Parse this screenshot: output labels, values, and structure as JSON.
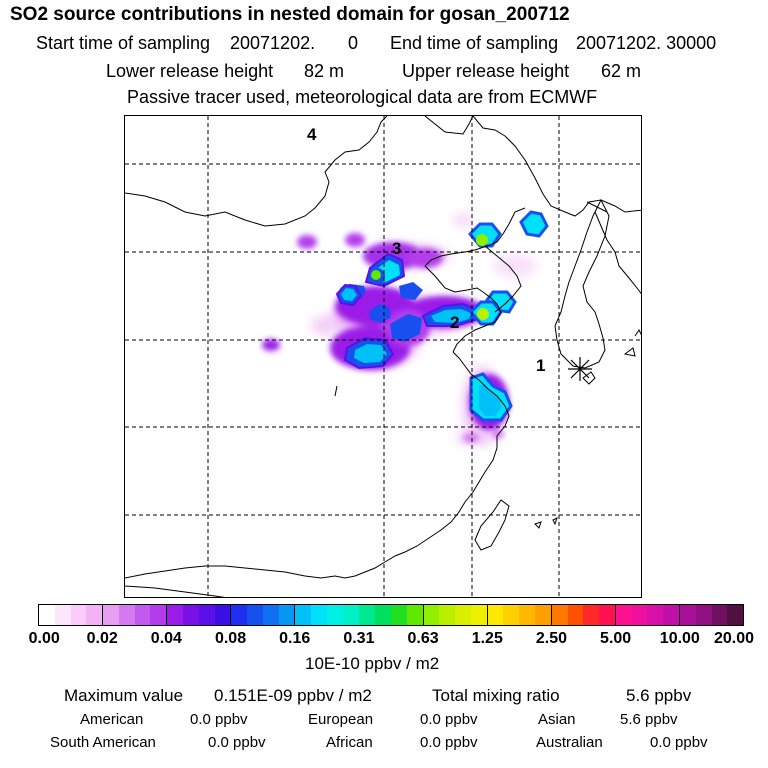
{
  "header": {
    "title": "SO2 source contributions in nested domain for gosan_200712",
    "start_label": "Start time of sampling",
    "start_value": "20071202.",
    "start_hour": "0",
    "end_label": "End time of sampling",
    "end_value": "20071202. 30000",
    "lower_label": "Lower release height",
    "lower_value": "82 m",
    "upper_label": "Upper release height",
    "upper_value": "62 m",
    "note": "Passive tracer used, meteorological data are from ECMWF"
  },
  "map": {
    "labels": [
      "1",
      "2",
      "3",
      "4"
    ],
    "receptor_marker": "station-marker-icon"
  },
  "colorbar": {
    "ticks": [
      "0.00",
      "0.02",
      "0.04",
      "0.08",
      "0.16",
      "0.31",
      "0.63",
      "1.25",
      "2.50",
      "5.00",
      "10.00",
      "20.00"
    ],
    "segments": [
      [
        "#ffffff",
        "#fde6fd",
        "#f9ccf9",
        "#f3b2f5"
      ],
      [
        "#e79ef3",
        "#d57af1",
        "#c35aef",
        "#b43ced"
      ],
      [
        "#9b1ce8",
        "#7a10e6",
        "#5a10e6",
        "#3a10e6"
      ],
      [
        "#2030f0",
        "#1850f0",
        "#1070f2",
        "#0898f4"
      ],
      [
        "#00c0f8",
        "#00e0f8",
        "#00f0e8",
        "#00f0c8"
      ],
      [
        "#00e890",
        "#00e060",
        "#20e020",
        "#60e800"
      ],
      [
        "#90f000",
        "#b8f000",
        "#d8f000",
        "#eef000"
      ],
      [
        "#ffe800",
        "#ffd000",
        "#ffb800",
        "#ffa000"
      ],
      [
        "#ff7800",
        "#ff5000",
        "#ff2828",
        "#ff1050"
      ],
      [
        "#ff1090",
        "#f010a0",
        "#d810a8",
        "#c010a8"
      ],
      [
        "#a81098",
        "#901080",
        "#701060",
        "#501040"
      ]
    ],
    "unit_label": "10E-10 ppbv / m2"
  },
  "summary": {
    "max_label": "Maximum value",
    "max_value": "0.151E-09 ppbv / m2",
    "total_label": "Total mixing ratio",
    "total_value": "5.6 ppbv",
    "regions": [
      {
        "name": "American",
        "value": "0.0 ppbv"
      },
      {
        "name": "European",
        "value": "0.0 ppbv"
      },
      {
        "name": "Asian",
        "value": "5.6 ppbv"
      },
      {
        "name": "South American",
        "value": "0.0 ppbv"
      },
      {
        "name": "African",
        "value": "0.0 ppbv"
      },
      {
        "name": "Australian",
        "value": "0.0 ppbv"
      }
    ]
  }
}
